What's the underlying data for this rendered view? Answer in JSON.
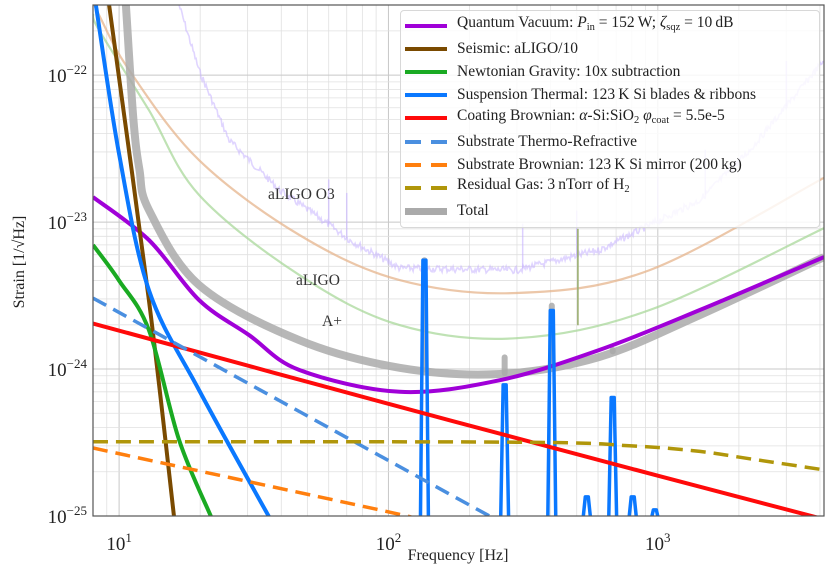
{
  "chart_data": {
    "type": "line",
    "xlabel": "Frequency [Hz]",
    "ylabel": "Strain [1/√Hz]",
    "xscale": "log",
    "yscale": "log",
    "xlim": [
      8,
      4140
    ],
    "ylim": [
      1e-25,
      3e-22
    ],
    "grid": "major and minor",
    "legend_position": "top-right",
    "x_ticks": [
      {
        "value": 10,
        "base": "10",
        "exp": "1"
      },
      {
        "value": 100,
        "base": "10",
        "exp": "2"
      },
      {
        "value": 1000,
        "base": "10",
        "exp": "3"
      }
    ],
    "y_ticks": [
      {
        "value": 1e-22,
        "base": "10",
        "exp": "−22"
      },
      {
        "value": 1e-23,
        "base": "10",
        "exp": "−23"
      },
      {
        "value": 1e-24,
        "base": "10",
        "exp": "−24"
      },
      {
        "value": 1e-25,
        "base": "10",
        "exp": "−25"
      }
    ],
    "reference_curves": [
      {
        "label": "aLIGO O3",
        "color": "#c7b2ff",
        "noisy": true,
        "points": [
          [
            16.7,
            2.99e-22
          ],
          [
            19.8,
            1.08e-22
          ],
          [
            25.6,
            3.61e-23
          ],
          [
            39.4,
            1.65e-23
          ],
          [
            60.4,
            9.55e-24
          ],
          [
            71.7,
            7.55e-24
          ],
          [
            110,
            4.86e-24
          ],
          [
            299,
            4.71e-24
          ],
          [
            608,
            6.45e-24
          ],
          [
            1432,
            1.41e-23
          ],
          [
            2198,
            3.09e-23
          ],
          [
            4140,
            1.26e-22
          ]
        ],
        "lines_hz": [
          60,
          70,
          315,
          500,
          1000,
          1500,
          3000
        ]
      },
      {
        "label": "aLIGO",
        "color": "#e6b48c",
        "points": [
          [
            8.0,
            3.2e-22
          ],
          [
            8.43,
            2.56e-22
          ],
          [
            10.9,
            1.08e-22
          ],
          [
            19.8,
            2.64e-23
          ],
          [
            46.7,
            8.17e-24
          ],
          [
            110,
            4.03e-24
          ],
          [
            299,
            3.29e-24
          ],
          [
            933,
            4.71e-24
          ],
          [
            4140,
            2e-23
          ]
        ]
      },
      {
        "label": "A+",
        "color": "#a9d89b",
        "points": [
          [
            8.0,
            2.6e-22
          ],
          [
            8.43,
            2.02e-22
          ],
          [
            12.9,
            5.78e-23
          ],
          [
            19.8,
            1.53e-23
          ],
          [
            46.7,
            4.36e-24
          ],
          [
            110,
            1.99e-24
          ],
          [
            299,
            1.62e-24
          ],
          [
            933,
            2.52e-24
          ],
          [
            4140,
            9.1e-24
          ]
        ],
        "spikes": [
          {
            "f": 505,
            "h": 9e-24
          }
        ]
      }
    ],
    "series": [
      {
        "name": "Quantum Vacuum: Pin = 152 W; ζsqz = 10 dB",
        "color": "#a000d8",
        "dash": false,
        "width": 4,
        "label_parts": [
          {
            "t": "Quantum Vacuum: "
          },
          {
            "t": "P",
            "s": "it"
          },
          {
            "t": "in",
            "s": "sub"
          },
          {
            "t": " = 152 W; "
          },
          {
            "t": "ζ",
            "s": "it"
          },
          {
            "t": "sqz",
            "s": "sub"
          },
          {
            "t": " = 10 dB"
          }
        ],
        "points": [
          [
            8,
            1.48e-23
          ],
          [
            12.9,
            7.55e-24
          ],
          [
            19.8,
            2.95e-24
          ],
          [
            30.4,
            1.7e-24
          ],
          [
            46.7,
            9.85e-25
          ],
          [
            110,
            7e-25
          ],
          [
            259,
            8.4e-25
          ],
          [
            608,
            1.35e-24
          ],
          [
            1432,
            2.52e-24
          ],
          [
            4140,
            5.78e-24
          ]
        ]
      },
      {
        "name": "Seismic: aLIGO/10",
        "color": "#7a4a00",
        "dash": false,
        "width": 4,
        "label_parts": [
          {
            "t": "Seismic: aLIGO/10"
          }
        ],
        "points": [
          [
            9.18,
            3e-22
          ],
          [
            12.9,
            2.95e-24
          ],
          [
            16.0,
            9.8e-26
          ]
        ]
      },
      {
        "name": "Newtonian Gravity: 10x subtraction",
        "color": "#1aaa22",
        "dash": false,
        "width": 4,
        "label_parts": [
          {
            "t": "Newtonian Gravity: 10x subtraction"
          }
        ],
        "points": [
          [
            8,
            6.98e-24
          ],
          [
            10,
            4e-24
          ],
          [
            12.9,
            1.84e-24
          ],
          [
            16.7,
            3.29e-25
          ],
          [
            22,
            9.8e-26
          ]
        ]
      },
      {
        "name": "Suspension Thermal: 123 K Si blades & ribbons",
        "color": "#0a78ff",
        "dash": false,
        "width": 4,
        "label_parts": [
          {
            "t": "Suspension Thermal: 123 K Si blades & ribbons"
          }
        ],
        "points": [
          [
            8.2,
            2.99e-22
          ],
          [
            10,
            2.9e-23
          ],
          [
            12.9,
            3.44e-24
          ],
          [
            19.8,
            7.2e-25
          ],
          [
            36.1,
            9.8e-26
          ]
        ],
        "peaks": [
          {
            "f": 136,
            "h": 5.5e-24
          },
          {
            "f": 270,
            "h": 7.8e-25
          },
          {
            "f": 404,
            "h": 2.5e-24
          },
          {
            "f": 545,
            "h": 1.35e-25
          },
          {
            "f": 680,
            "h": 6.4e-25
          },
          {
            "f": 807,
            "h": 1.35e-25
          },
          {
            "f": 975,
            "h": 1.1e-25
          }
        ]
      },
      {
        "name": "Coating Brownian: α-Si:SiO2 φcoat = 5.5e-5",
        "color": "#ff0a0a",
        "dash": false,
        "width": 4,
        "label_parts": [
          {
            "t": "Coating Brownian: "
          },
          {
            "t": "α",
            "s": "it"
          },
          {
            "t": "-Si:SiO"
          },
          {
            "t": "2",
            "s": "sub"
          },
          {
            "t": " "
          },
          {
            "t": "φ",
            "s": "it"
          },
          {
            "t": "coat",
            "s": "sub"
          },
          {
            "t": " = 5.5e-5"
          }
        ],
        "points": [
          [
            8,
            2.04e-24
          ],
          [
            100,
            5.8e-25
          ],
          [
            1000,
            1.88e-25
          ],
          [
            4140,
            9.5e-26
          ]
        ]
      },
      {
        "name": "Substrate Thermo-Refractive",
        "color": "#4a8fe0",
        "dash": true,
        "width": 3.5,
        "label_parts": [
          {
            "t": "Substrate Thermo-Refractive"
          }
        ],
        "points": [
          [
            8,
            3.04e-24
          ],
          [
            237,
            1e-25
          ]
        ]
      },
      {
        "name": "Substrate Brownian: 123 K Si mirror (200 kg)",
        "color": "#ff7f0e",
        "dash": true,
        "width": 3.5,
        "label_parts": [
          {
            "t": "Substrate Brownian: 123 K Si mirror (200 kg)"
          }
        ],
        "points": [
          [
            8,
            2.9e-25
          ],
          [
            92.6,
            1.1e-25
          ],
          [
            120,
            9.8e-26
          ]
        ]
      },
      {
        "name": "Residual Gas: 3 nTorr of H2",
        "color": "#b0960a",
        "dash": true,
        "width": 3.5,
        "label_parts": [
          {
            "t": "Residual Gas: 3 nTorr of H"
          },
          {
            "t": "2",
            "s": "sub"
          }
        ],
        "points": [
          [
            8,
            3.2e-25
          ],
          [
            300,
            3.18e-25
          ],
          [
            800,
            3e-25
          ],
          [
            1432,
            2.75e-25
          ],
          [
            2198,
            2.45e-25
          ],
          [
            4140,
            2.06e-25
          ]
        ]
      },
      {
        "name": "Total",
        "color": "#aaaaaa",
        "dash": false,
        "width": 8,
        "label_parts": [
          {
            "t": "Total"
          }
        ],
        "points": [
          [
            10.6,
            2.99e-22
          ],
          [
            11.3,
            5e-23
          ],
          [
            11.9,
            2.26e-23
          ],
          [
            12.9,
            1.21e-23
          ],
          [
            19.8,
            3.73e-24
          ],
          [
            46.7,
            1.57e-24
          ],
          [
            110,
            1.02e-24
          ],
          [
            259,
            9.25e-25
          ],
          [
            608,
            1.21e-24
          ],
          [
            1432,
            2.33e-24
          ],
          [
            4140,
            5.78e-24
          ]
        ],
        "peaks": [
          {
            "f": 136,
            "h": 5.5e-24
          },
          {
            "f": 270,
            "h": 1.2e-24
          },
          {
            "f": 404,
            "h": 2.7e-24
          },
          {
            "f": 680,
            "h": 1.35e-24
          }
        ]
      }
    ]
  }
}
